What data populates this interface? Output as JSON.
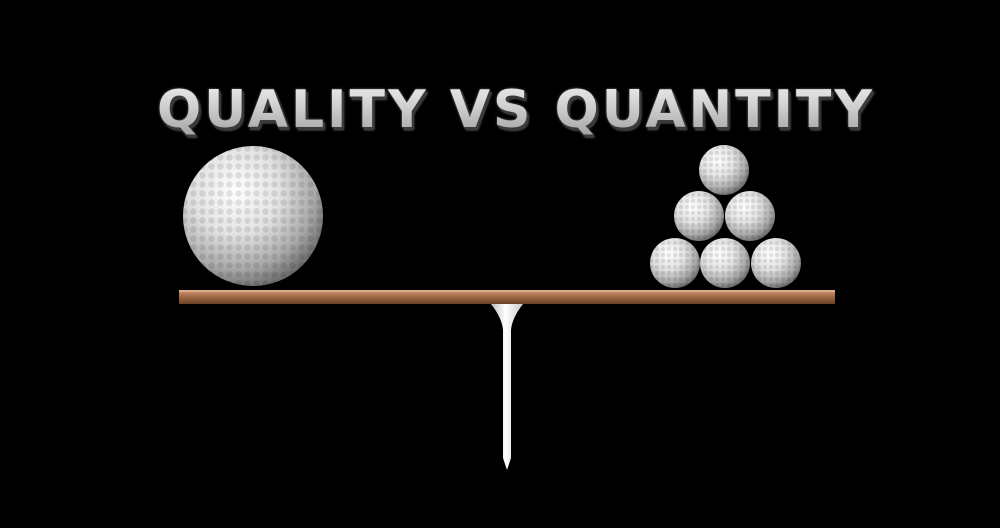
{
  "title": "QUALITY VS QUANTITY",
  "colors": {
    "background": "#000000",
    "plank": "#a8724d",
    "ball": "#e6e6e6",
    "tee": "#f2f2f2",
    "title": "#cfcfcf"
  },
  "scene": {
    "left_side": {
      "ball_count": 1
    },
    "right_side": {
      "ball_count": 6,
      "arrangement": "pyramid"
    }
  }
}
